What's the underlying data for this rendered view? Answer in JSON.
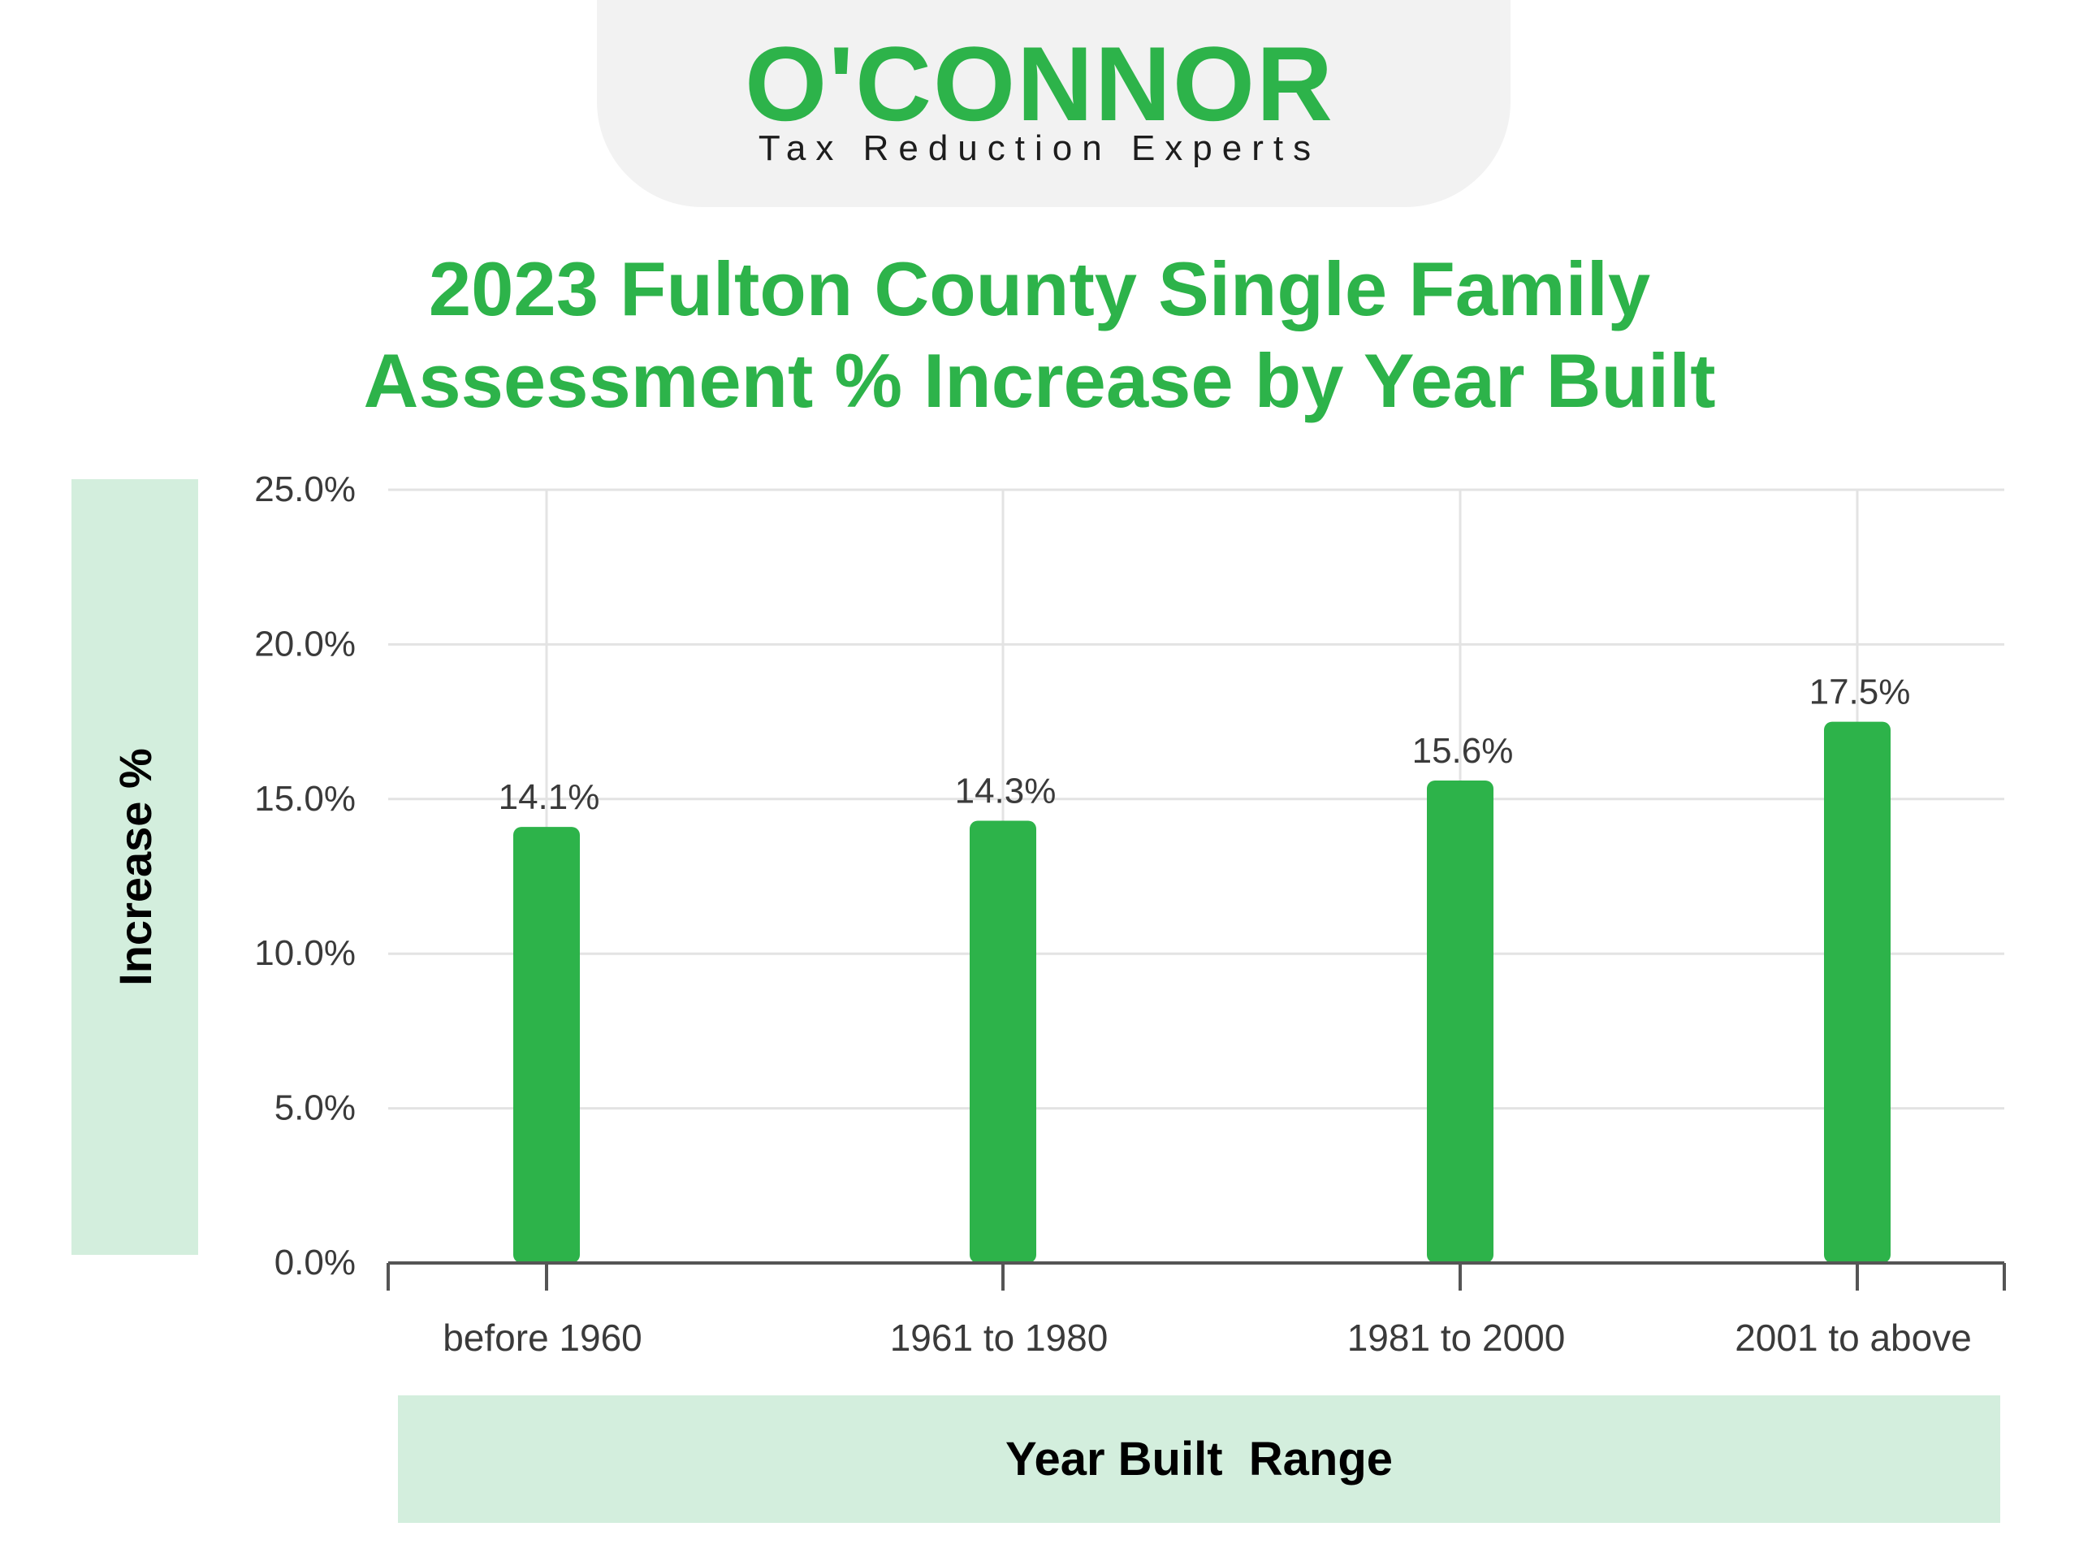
{
  "logo": {
    "name": "O'CONNOR",
    "tagline": "Tax Reduction Experts"
  },
  "chart_data": {
    "type": "bar",
    "title": "2023 Fulton County Single Family Assessment % Increase by Year Built",
    "title_lines": [
      "2023 Fulton County Single Family",
      "Assessment % Increase by Year Built"
    ],
    "xlabel": "Year Built  Range",
    "ylabel": "Increase %",
    "categories": [
      "before 1960",
      "1961 to 1980",
      "1981 to 2000",
      "2001 to above"
    ],
    "values": [
      14.1,
      14.3,
      15.6,
      17.5
    ],
    "data_labels": [
      "14.1%",
      "14.3%",
      "15.6%",
      "17.5%"
    ],
    "yticks": [
      0,
      5,
      10,
      15,
      20,
      25
    ],
    "ytick_labels": [
      "0.0%",
      "5.0%",
      "10.0%",
      "15.0%",
      "20.0%",
      "25.0%"
    ],
    "ylim": [
      0,
      25
    ],
    "grid": true,
    "colors": {
      "bar": "#2db34a",
      "title": "#2db34a",
      "label_band": "#d3eedd"
    }
  }
}
